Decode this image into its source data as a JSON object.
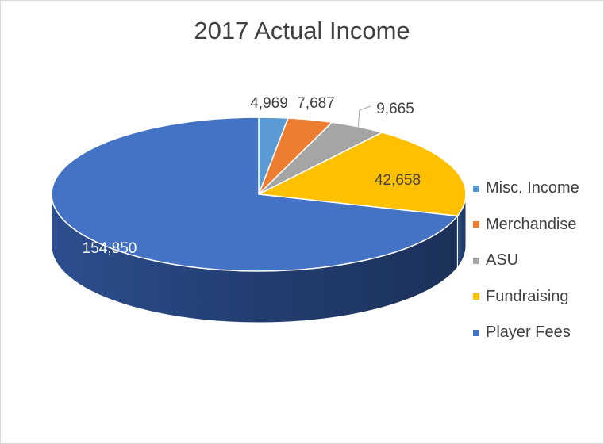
{
  "chart_data": {
    "type": "pie",
    "title": "2017 Actual Income",
    "style": "3d",
    "legend_position": "right",
    "slices": [
      {
        "label": "Misc. Income",
        "value": 4969,
        "display": "4,969",
        "color": "#5b9bd5"
      },
      {
        "label": "Merchandise",
        "value": 7687,
        "display": "7,687",
        "color": "#ed7d31"
      },
      {
        "label": "ASU",
        "value": 9665,
        "display": "9,665",
        "color": "#a5a5a5"
      },
      {
        "label": "Fundraising",
        "value": 42658,
        "display": "42,658",
        "color": "#ffc000"
      },
      {
        "label": "Player Fees",
        "value": 154850,
        "display": "154,850",
        "color": "#4472c4"
      }
    ]
  }
}
